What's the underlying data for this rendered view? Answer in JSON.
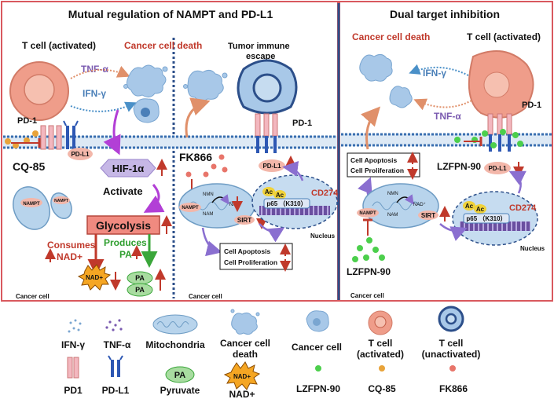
{
  "panels": {
    "left_title": "Mutual regulation of NAMPT and PD-L1",
    "right_title": "Dual target inhibition"
  },
  "left": {
    "t_cell_label": "T cell  (activated)",
    "cancer_death_label": "Cancer cell death",
    "tnf_label": "TNF-α",
    "ifn_label": "IFN-γ",
    "pd1_label": "PD-1",
    "pdl1_label": "PD-L1",
    "cq85_label": "CQ-85",
    "hif_label": "HIF-1α",
    "activate_label": "Activate",
    "glycolysis_label": "Glycolysis",
    "consumes_label": "Consumes",
    "nadplus_label": "NAD+",
    "produces_label": "Produces",
    "pa_label": "PA",
    "nad_burst_label": "NAD+",
    "pa1_label": "PA",
    "pa2_label": "PA",
    "nampt1_label": "NAMPT",
    "nampt2_label": "NAMPT",
    "cancer_cell_label": "Cancer cell"
  },
  "middle": {
    "escape_label_1": "Tumor immune",
    "escape_label_2": "escape",
    "pd1_label": "PD-1",
    "fk866_label": "FK866",
    "pdl1_label": "PD-L1",
    "nmn_label": "NMN",
    "nam_label": "NAM",
    "nad_label": "NAD⁺",
    "nampt_label": "NAMPT",
    "sirt_label": "SIRT",
    "ac1_label": "Ac",
    "ac2_label": "Ac",
    "p65_label": "p65 （K310）",
    "cd274_label": "CD274",
    "nucleus_label": "Nucleus",
    "apoptosis_label": "Cell Apoptosis",
    "proliferation_label": "Cell Proliferation",
    "cancer_cell_label": "Cancer cell"
  },
  "right": {
    "cancer_death_label": "Cancer cell death",
    "t_cell_label": "T cell  (activated)",
    "ifn_label": "IFN-γ",
    "tnf_label": "TNF-α",
    "pd1_label": "PD-1",
    "apoptosis_label": "Cell Apoptosis",
    "proliferation_label": "Cell Proliferation",
    "lzfpn_top_label": "LZFPN-90",
    "pdl1_label": "PD-L1",
    "nmn_label": "NMN",
    "nam_label": "NAM",
    "nad_label": "NAD⁺",
    "nampt_label": "NAMPT",
    "sirt_label": "SIRT",
    "ac1_label": "Ac",
    "ac2_label": "Ac",
    "p65_label": "p65 （K310）",
    "cd274_label": "CD274",
    "nucleus_label": "Nucleus",
    "lzfpn_bottom_label": "LZFPN-90",
    "cancer_cell_label": "Cancer cell"
  },
  "legend": {
    "ifn": "IFN-γ",
    "tnf": "TNF-α",
    "mito": "Mitochondria",
    "death_1": "Cancer cell",
    "death_2": "death",
    "cancer": "Cancer cell",
    "tact_1": "T cell",
    "tact_2": "(activated)",
    "tun_1": "T cell",
    "tun_2": "(unactivated)",
    "pd1": "PD1",
    "pdl1": "PD-L1",
    "pa_badge": "PA",
    "pyruvate": "Pyruvate",
    "nad_badge": "NAD+",
    "nadplus": "NAD+",
    "lzfpn": "LZFPN-90",
    "cq85": "CQ-85",
    "fk866": "FK866"
  },
  "colors": {
    "frame": "#d9595e",
    "membrane": "#3a6fb0",
    "tcell_fill": "#ef9d8a",
    "cancer_fill": "#a8c8e8",
    "up_arrow": "#c0392b",
    "lzfpn_green": "#4ccf4c",
    "cq85_orange": "#e8a33a",
    "fk866_pink": "#e8756a",
    "purple_arrow": "#8a6fd0",
    "magenta_arrow": "#b23fd6"
  }
}
